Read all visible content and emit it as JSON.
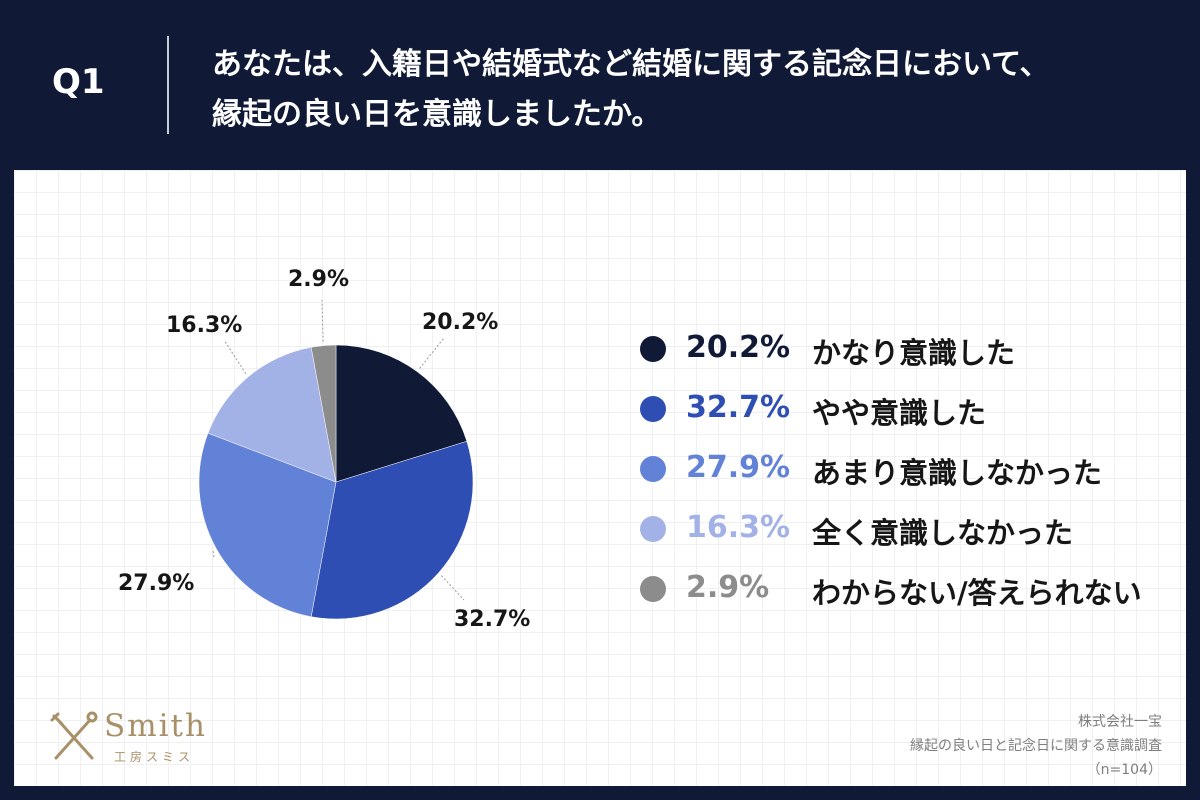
{
  "header": {
    "question_label": "Q1",
    "question_line1": "あなたは、入籍日や結婚式など結婚に関する記念日において、",
    "question_line2": "縁起の良い日を意識しましたか。"
  },
  "chart_data": {
    "type": "pie",
    "slices": [
      {
        "label": "かなり意識した",
        "value": 20.2,
        "display": "20.2%",
        "color": "#101a36"
      },
      {
        "label": "やや意識した",
        "value": 32.7,
        "display": "32.7%",
        "color": "#2f4eb3"
      },
      {
        "label": "あまり意識しなかった",
        "value": 27.9,
        "display": "27.9%",
        "color": "#6282d8"
      },
      {
        "label": "全く意識しなかった",
        "value": 16.3,
        "display": "16.3%",
        "color": "#a3b2e6"
      },
      {
        "label": "わからない/答えられない",
        "value": 2.9,
        "display": "2.9%",
        "color": "#8c8c8c"
      }
    ],
    "start": "12 o'clock",
    "direction": "clockwise",
    "legend_position": "right"
  },
  "legend": {
    "items": [
      {
        "value": "20.2%",
        "label": "かなり意識した",
        "color": "#101a36"
      },
      {
        "value": "32.7%",
        "label": "やや意識した",
        "color": "#2f4eb3"
      },
      {
        "value": "27.9%",
        "label": "あまり意識しなかった",
        "color": "#6282d8"
      },
      {
        "value": "16.3%",
        "label": "全く意識しなかった",
        "color": "#a3b2e6"
      },
      {
        "value": "2.9%",
        "label": "わからない/答えられない",
        "color": "#8c8c8c"
      }
    ]
  },
  "logo": {
    "name": "Smith",
    "subtitle": "工房スミス",
    "icon": "crossed-tools-icon"
  },
  "source": {
    "company": "株式会社一宝",
    "survey": "縁起の良い日と記念日に関する意識調査",
    "sample": "（n=104）"
  }
}
